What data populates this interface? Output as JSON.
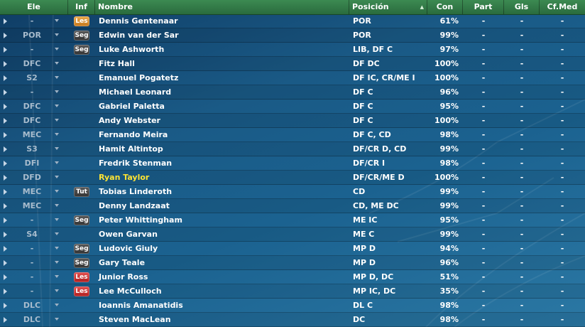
{
  "header": {
    "role": "Ele",
    "info": "Inf",
    "name": "Nombre",
    "position": "Posición",
    "condition": "Con",
    "apps": "Part",
    "goals": "Gls",
    "avg_rating": "Cf.Med"
  },
  "players": [
    {
      "role": "-",
      "badge": "Les",
      "badge_type": "les-orange",
      "name": "Dennis Gentenaar",
      "position": "POR",
      "condition": "61%",
      "apps": "-",
      "goals": "-",
      "rating": "-"
    },
    {
      "role": "POR",
      "badge": "Seg",
      "badge_type": "seg",
      "name": "Edwin van der Sar",
      "position": "POR",
      "condition": "99%",
      "apps": "-",
      "goals": "-",
      "rating": "-"
    },
    {
      "role": "-",
      "badge": "Seg",
      "badge_type": "seg",
      "name": "Luke Ashworth",
      "position": "LIB, DF C",
      "condition": "97%",
      "apps": "-",
      "goals": "-",
      "rating": "-"
    },
    {
      "role": "DFC",
      "badge": "",
      "badge_type": "",
      "name": "Fitz Hall",
      "position": "DF DC",
      "condition": "100%",
      "apps": "-",
      "goals": "-",
      "rating": "-"
    },
    {
      "role": "S2",
      "badge": "",
      "badge_type": "",
      "name": "Emanuel Pogatetz",
      "position": "DF IC, CR/ME I",
      "condition": "100%",
      "apps": "-",
      "goals": "-",
      "rating": "-"
    },
    {
      "role": "-",
      "badge": "",
      "badge_type": "",
      "name": "Michael Leonard",
      "position": "DF C",
      "condition": "96%",
      "apps": "-",
      "goals": "-",
      "rating": "-"
    },
    {
      "role": "DFC",
      "badge": "",
      "badge_type": "",
      "name": "Gabriel Paletta",
      "position": "DF C",
      "condition": "95%",
      "apps": "-",
      "goals": "-",
      "rating": "-"
    },
    {
      "role": "DFC",
      "badge": "",
      "badge_type": "",
      "name": "Andy Webster",
      "position": "DF C",
      "condition": "100%",
      "apps": "-",
      "goals": "-",
      "rating": "-"
    },
    {
      "role": "MEC",
      "badge": "",
      "badge_type": "",
      "name": "Fernando Meira",
      "position": "DF C, CD",
      "condition": "98%",
      "apps": "-",
      "goals": "-",
      "rating": "-"
    },
    {
      "role": "S3",
      "badge": "",
      "badge_type": "",
      "name": "Hamit Altintop",
      "position": "DF/CR D, CD",
      "condition": "99%",
      "apps": "-",
      "goals": "-",
      "rating": "-"
    },
    {
      "role": "DFI",
      "badge": "",
      "badge_type": "",
      "name": "Fredrik Stenman",
      "position": "DF/CR I",
      "condition": "98%",
      "apps": "-",
      "goals": "-",
      "rating": "-"
    },
    {
      "role": "DFD",
      "badge": "",
      "badge_type": "",
      "name": "Ryan Taylor",
      "position": "DF/CR/ME D",
      "condition": "100%",
      "apps": "-",
      "goals": "-",
      "rating": "-",
      "highlight": true
    },
    {
      "role": "MEC",
      "badge": "Tut",
      "badge_type": "tut",
      "name": "Tobias Linderoth",
      "position": "CD",
      "condition": "99%",
      "apps": "-",
      "goals": "-",
      "rating": "-"
    },
    {
      "role": "MEC",
      "badge": "",
      "badge_type": "",
      "name": "Denny Landzaat",
      "position": "CD, ME DC",
      "condition": "99%",
      "apps": "-",
      "goals": "-",
      "rating": "-"
    },
    {
      "role": "-",
      "badge": "Seg",
      "badge_type": "seg",
      "name": "Peter Whittingham",
      "position": "ME IC",
      "condition": "95%",
      "apps": "-",
      "goals": "-",
      "rating": "-"
    },
    {
      "role": "S4",
      "badge": "",
      "badge_type": "",
      "name": "Owen Garvan",
      "position": "ME C",
      "condition": "99%",
      "apps": "-",
      "goals": "-",
      "rating": "-"
    },
    {
      "role": "-",
      "badge": "Seg",
      "badge_type": "seg",
      "name": "Ludovic Giuly",
      "position": "MP D",
      "condition": "94%",
      "apps": "-",
      "goals": "-",
      "rating": "-"
    },
    {
      "role": "-",
      "badge": "Seg",
      "badge_type": "seg",
      "name": "Gary Teale",
      "position": "MP D",
      "condition": "96%",
      "apps": "-",
      "goals": "-",
      "rating": "-"
    },
    {
      "role": "-",
      "badge": "Les",
      "badge_type": "les-red",
      "name": "Junior Ross",
      "position": "MP D, DC",
      "condition": "51%",
      "apps": "-",
      "goals": "-",
      "rating": "-"
    },
    {
      "role": "-",
      "badge": "Les",
      "badge_type": "les-red",
      "name": "Lee McCulloch",
      "position": "MP IC, DC",
      "condition": "35%",
      "apps": "-",
      "goals": "-",
      "rating": "-"
    },
    {
      "role": "DLC",
      "badge": "",
      "badge_type": "",
      "name": "Ioannis Amanatidis",
      "position": "DL C",
      "condition": "98%",
      "apps": "-",
      "goals": "-",
      "rating": "-"
    },
    {
      "role": "DLC",
      "badge": "",
      "badge_type": "",
      "name": "Steven MacLean",
      "position": "DC",
      "condition": "98%",
      "apps": "-",
      "goals": "-",
      "rating": "-"
    }
  ]
}
